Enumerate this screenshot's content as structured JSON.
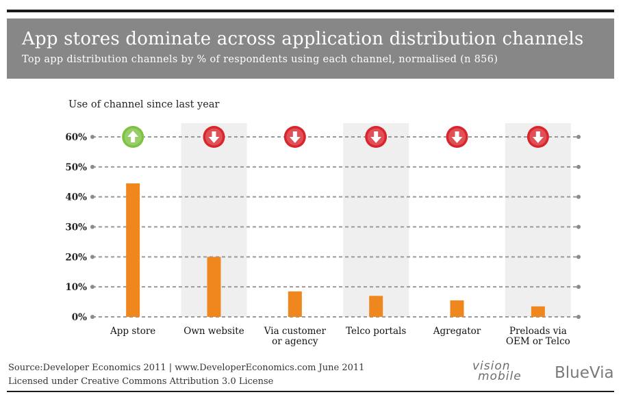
{
  "header": {
    "title": "App stores dominate across application distribution channels",
    "subtitle": "Top app distribution channels by % of respondents using each channel, normalised (n  856)"
  },
  "chart_data": {
    "type": "bar",
    "title": "App stores dominate across application distribution channels",
    "subtitle": "Top app distribution channels by % of respondents using each channel, normalised (n  856)",
    "legend_caption": "Use of channel since last year",
    "categories": [
      "App store",
      "Own website",
      "Via customer or agency",
      "Telco portals",
      "Agregator",
      "Preloads via OEM or Telco"
    ],
    "category_label_lines": [
      [
        "App store"
      ],
      [
        "Own website"
      ],
      [
        "Via customer",
        "or agency"
      ],
      [
        "Telco portals"
      ],
      [
        "Agregator"
      ],
      [
        "Preloads via",
        "OEM or Telco"
      ]
    ],
    "values": [
      44.5,
      20,
      8.5,
      7,
      5.5,
      3.5
    ],
    "trend": [
      "up",
      "down",
      "down",
      "down",
      "down",
      "down"
    ],
    "ylim": [
      0,
      60
    ],
    "yticks": [
      0,
      10,
      20,
      30,
      40,
      50,
      60
    ],
    "ytick_labels": [
      "0%",
      "10%",
      "20%",
      "30%",
      "40%",
      "50%",
      "60%"
    ],
    "xlabel": "",
    "ylabel": "",
    "grid": true,
    "colors": {
      "bar": "#f0861e",
      "up": "#7dc242",
      "down": "#d9252d",
      "band": "#efefef",
      "grid": "#999999"
    }
  },
  "footer": {
    "source": "Source:Developer Economics 2011 | www.DeveloperEconomics.com   June 2011",
    "license": "Licensed under Creative Commons Attribution 3.0 License",
    "brand_vision_top": "vision",
    "brand_vision_bottom": "mobile",
    "brand_bluevia": "BlueVia"
  }
}
